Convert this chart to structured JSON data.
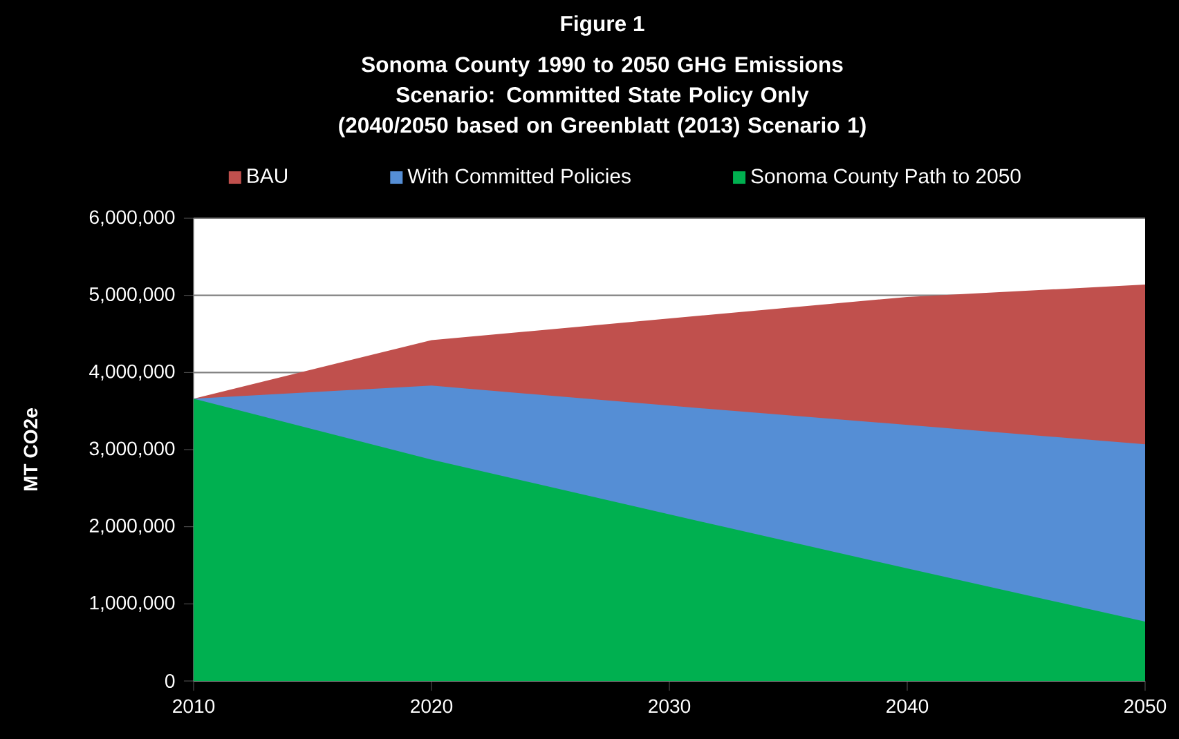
{
  "chart_data": {
    "type": "area",
    "title": "Figure 1",
    "subtitle": "Sonoma County 1990 to 2050 GHG Emissions Scenario: Committed  State Policy Only (2040/2050 based on Greenblatt (2013) Scenario 1)",
    "ylabel": "MT CO2e",
    "x": [
      2010,
      2020,
      2030,
      2040,
      2050
    ],
    "series": [
      {
        "name": "BAU",
        "color": "#c0504d",
        "values": [
          3660000,
          4420000,
          4700000,
          4980000,
          5140000
        ]
      },
      {
        "name": "With Committed Policies",
        "color": "#558ed5",
        "values": [
          3660000,
          3830000,
          3570000,
          3320000,
          3070000
        ]
      },
      {
        "name": "Sonoma County Path to 2050",
        "color": "#00b050",
        "values": [
          3660000,
          2870000,
          2160000,
          1460000,
          770000
        ]
      }
    ],
    "xlim": [
      2010,
      2050
    ],
    "xticks": [
      2010,
      2020,
      2030,
      2040,
      2050
    ],
    "ylim": [
      0,
      6000000
    ],
    "yticks": [
      0,
      {
        "value": 1000000,
        "label": "1,000,000"
      },
      {
        "value": 2000000,
        "label": "2,000,000"
      },
      {
        "value": 3000000,
        "label": "3,000,000"
      },
      {
        "value": 4000000,
        "label": "4,000,000"
      },
      {
        "value": 5000000,
        "label": "5,000,000"
      },
      {
        "value": 6000000,
        "label": "6,000,000"
      }
    ],
    "grid": "y",
    "legend": "top"
  }
}
